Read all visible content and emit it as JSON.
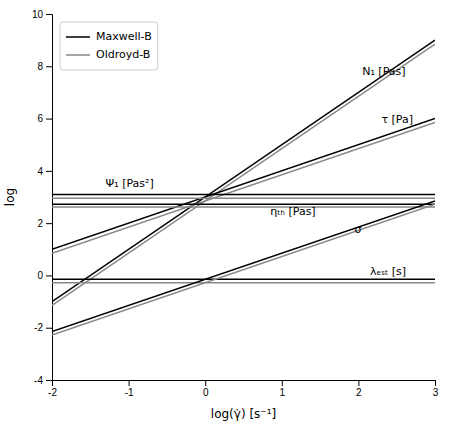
{
  "chart_data": {
    "type": "line",
    "xlabel": "log(γ̇) [s⁻¹]",
    "ylabel": "log",
    "xlim": [
      -2,
      3
    ],
    "ylim": [
      -4,
      10
    ],
    "xticks": [
      -2,
      -1,
      0,
      1,
      2,
      3
    ],
    "yticks": [
      -4,
      -2,
      0,
      2,
      4,
      6,
      8,
      10
    ],
    "grid": false,
    "legend": "upper left",
    "series": [
      {
        "name": "Maxwell-B",
        "color": "#000000",
        "x": [
          -2,
          3
        ],
        "values": [
          -1,
          9
        ]
      },
      {
        "name": "Oldroyd-B",
        "color": "#888888",
        "x": [
          -2,
          3
        ],
        "values": [
          -1.15,
          8.85
        ]
      },
      {
        "color": "#000000",
        "x": [
          -2,
          3
        ],
        "values": [
          1,
          6
        ]
      },
      {
        "color": "#888888",
        "x": [
          -2,
          3
        ],
        "values": [
          0.85,
          5.85
        ]
      },
      {
        "color": "#000000",
        "x": [
          -2,
          3
        ],
        "values": [
          3.1,
          3.1
        ]
      },
      {
        "color": "#888888",
        "x": [
          -2,
          3
        ],
        "values": [
          2.95,
          2.95
        ]
      },
      {
        "color": "#000000",
        "x": [
          -2,
          3
        ],
        "values": [
          2.72,
          2.72
        ]
      },
      {
        "color": "#888888",
        "x": [
          -2,
          3
        ],
        "values": [
          2.62,
          2.62
        ]
      },
      {
        "color": "#000000",
        "x": [
          -2,
          3
        ],
        "values": [
          -0.15,
          -0.15
        ]
      },
      {
        "color": "#888888",
        "x": [
          -2,
          3
        ],
        "values": [
          -0.28,
          -0.28
        ]
      },
      {
        "color": "#000000",
        "x": [
          -2,
          3
        ],
        "values": [
          -2.15,
          2.85
        ]
      },
      {
        "color": "#888888",
        "x": [
          -2,
          3
        ],
        "values": [
          -2.28,
          2.72
        ]
      }
    ],
    "annotations": [
      {
        "text": "N₁ [Pas]",
        "x": 2.05,
        "y": 7.8
      },
      {
        "text": "τ [Pa]",
        "x": 2.3,
        "y": 5.95
      },
      {
        "text": "Ψ₁ [Pas²]",
        "x": -1.3,
        "y": 3.5
      },
      {
        "text": "ηₜₕ [Pas]",
        "x": 0.85,
        "y": 2.42
      },
      {
        "text": "σ",
        "x": 1.95,
        "y": 1.75
      },
      {
        "text": "λₑₛₜ [s]",
        "x": 2.15,
        "y": 0.12
      }
    ]
  }
}
